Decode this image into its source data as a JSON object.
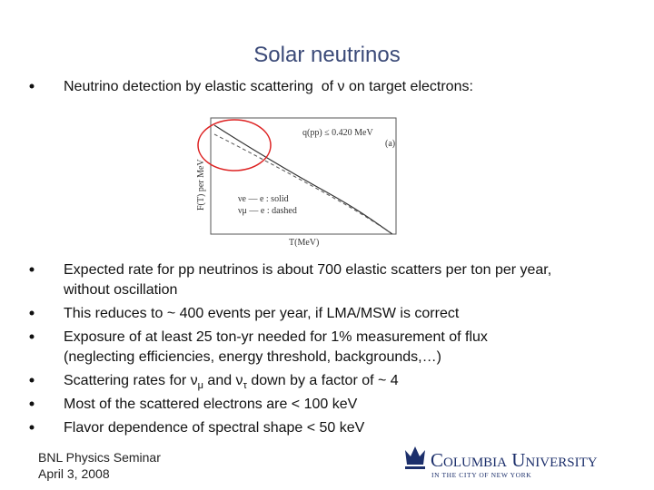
{
  "title": "Solar neutrinos",
  "intro": "Neutrino detection by elastic scattering  of ν on target electrons:",
  "figure": {
    "annotation": "q(pp) ≤ 0.420 MeV",
    "panel": "(a)",
    "y_label": "F(T) per MeV",
    "x_label": "T(MeV)",
    "legend": [
      "νe — e : solid",
      "νμ — e : dashed"
    ]
  },
  "bullets": [
    {
      "lines": [
        "Expected rate for pp neutrinos is about 700 elastic scatters per ton per year,",
        "without oscillation"
      ]
    },
    {
      "lines": [
        "This reduces to ~ 400 events per year, if LMA/MSW is correct"
      ]
    },
    {
      "lines": [
        "Exposure of at least 25 ton-yr needed for 1% measurement of flux",
        "(neglecting efficiencies, energy threshold, backgrounds,…)"
      ]
    },
    {
      "parts": [
        {
          "text": "Scattering rates for ν"
        },
        {
          "sub": "μ"
        },
        {
          "text": " and ν"
        },
        {
          "sub": "τ"
        },
        {
          "text": " down by a factor of ~ 4"
        }
      ]
    },
    {
      "lines": [
        "Most of the scattered electrons are < 100 keV"
      ]
    },
    {
      "lines": [
        "Flavor dependence of spectral shape < 50 keV"
      ]
    }
  ],
  "footer": {
    "lines": [
      "BNL Physics Seminar",
      "April 3, 2008"
    ]
  },
  "logo": {
    "name": "Columbia University",
    "tagline": "IN THE CITY OF NEW YORK"
  }
}
